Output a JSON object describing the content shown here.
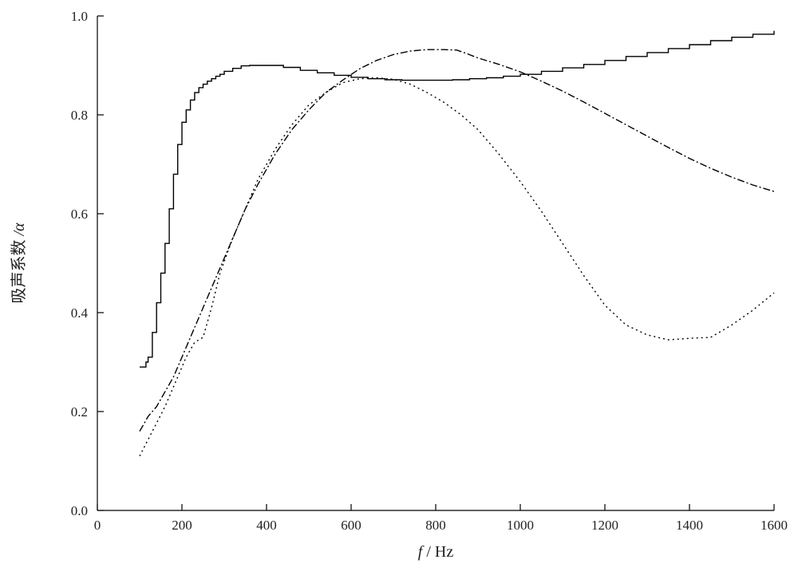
{
  "chart_data": {
    "type": "line",
    "xlabel_italic": "f",
    "xlabel_unit": " / Hz",
    "ylabel_cjk": "吸声系数",
    "ylabel_symbol": " /α",
    "xlim": [
      0,
      1600
    ],
    "ylim": [
      0,
      1.0
    ],
    "xticks": [
      0,
      200,
      400,
      600,
      800,
      1000,
      1200,
      1400,
      1600
    ],
    "yticks": [
      0.0,
      0.2,
      0.4,
      0.6,
      0.8,
      1.0
    ],
    "xtick_labels": [
      "0",
      "200",
      "400",
      "600",
      "800",
      "1000",
      "1200",
      "1400",
      "1600"
    ],
    "ytick_labels": [
      "0.0",
      "0.2",
      "0.4",
      "0.6",
      "0.8",
      "1.0"
    ],
    "grid": false,
    "series": [
      {
        "style": "solid",
        "x": [
          100,
          115,
          120,
          130,
          140,
          150,
          160,
          170,
          180,
          190,
          200,
          210,
          220,
          230,
          240,
          250,
          260,
          270,
          280,
          290,
          300,
          320,
          340,
          360,
          400,
          440,
          480,
          520,
          560,
          600,
          640,
          680,
          720,
          760,
          800,
          840,
          880,
          920,
          960,
          1000,
          1050,
          1100,
          1150,
          1200,
          1250,
          1300,
          1350,
          1400,
          1450,
          1500,
          1550,
          1600
        ],
        "y": [
          0.29,
          0.3,
          0.31,
          0.36,
          0.42,
          0.48,
          0.54,
          0.61,
          0.68,
          0.74,
          0.785,
          0.81,
          0.83,
          0.845,
          0.855,
          0.862,
          0.868,
          0.873,
          0.878,
          0.882,
          0.888,
          0.894,
          0.899,
          0.9,
          0.9,
          0.896,
          0.89,
          0.885,
          0.88,
          0.876,
          0.873,
          0.871,
          0.87,
          0.87,
          0.87,
          0.871,
          0.873,
          0.875,
          0.878,
          0.882,
          0.888,
          0.895,
          0.902,
          0.91,
          0.918,
          0.926,
          0.934,
          0.942,
          0.95,
          0.957,
          0.963,
          0.97
        ]
      },
      {
        "style": "dashdot",
        "x": [
          100,
          120,
          140,
          160,
          180,
          200,
          230,
          260,
          290,
          320,
          350,
          380,
          420,
          460,
          500,
          540,
          580,
          620,
          660,
          700,
          740,
          780,
          820,
          850,
          870,
          900,
          950,
          1000,
          1050,
          1100,
          1150,
          1200,
          1250,
          1300,
          1350,
          1400,
          1450,
          1500,
          1550,
          1600
        ],
        "y": [
          0.16,
          0.19,
          0.21,
          0.24,
          0.27,
          0.31,
          0.37,
          0.43,
          0.49,
          0.55,
          0.61,
          0.66,
          0.72,
          0.77,
          0.81,
          0.845,
          0.87,
          0.893,
          0.91,
          0.922,
          0.929,
          0.932,
          0.932,
          0.931,
          0.925,
          0.915,
          0.902,
          0.887,
          0.868,
          0.848,
          0.826,
          0.803,
          0.78,
          0.757,
          0.734,
          0.712,
          0.692,
          0.674,
          0.658,
          0.645
        ]
      },
      {
        "style": "dotted",
        "x": [
          100,
          130,
          160,
          190,
          210,
          230,
          250,
          270,
          290,
          320,
          350,
          380,
          420,
          460,
          500,
          540,
          580,
          620,
          660,
          700,
          740,
          780,
          820,
          860,
          900,
          950,
          1000,
          1050,
          1100,
          1150,
          1200,
          1250,
          1300,
          1350,
          1400,
          1450,
          1500,
          1550,
          1600
        ],
        "y": [
          0.11,
          0.16,
          0.21,
          0.27,
          0.31,
          0.34,
          0.35,
          0.41,
          0.48,
          0.55,
          0.61,
          0.67,
          0.73,
          0.78,
          0.82,
          0.845,
          0.865,
          0.873,
          0.875,
          0.872,
          0.862,
          0.845,
          0.825,
          0.8,
          0.77,
          0.72,
          0.665,
          0.605,
          0.54,
          0.475,
          0.415,
          0.375,
          0.355,
          0.345,
          0.348,
          0.35,
          0.375,
          0.405,
          0.44
        ]
      }
    ]
  }
}
